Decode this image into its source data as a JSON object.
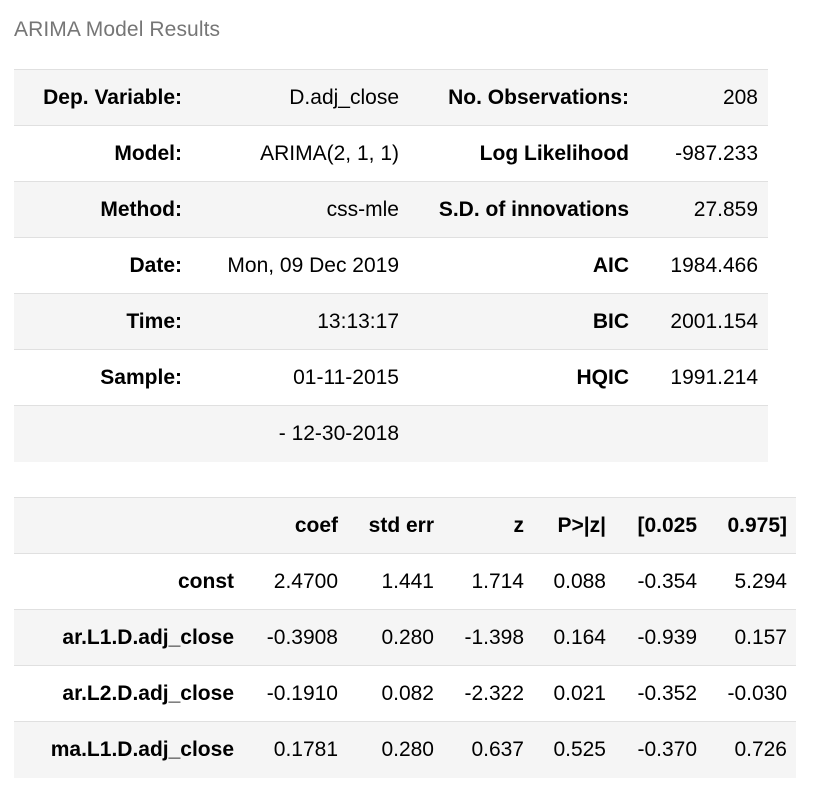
{
  "caption": "ARIMA Model Results",
  "summary": {
    "rows": [
      {
        "l_label": "Dep. Variable:",
        "l_value": "D.adj_close",
        "r_label": "No. Observations:",
        "r_value": "208"
      },
      {
        "l_label": "Model:",
        "l_value": "ARIMA(2, 1, 1)",
        "r_label": "Log Likelihood",
        "r_value": "-987.233"
      },
      {
        "l_label": "Method:",
        "l_value": "css-mle",
        "r_label": "S.D. of innovations",
        "r_value": "27.859"
      },
      {
        "l_label": "Date:",
        "l_value": "Mon, 09 Dec 2019",
        "r_label": "AIC",
        "r_value": "1984.466"
      },
      {
        "l_label": "Time:",
        "l_value": "13:13:17",
        "r_label": "BIC",
        "r_value": "2001.154"
      },
      {
        "l_label": "Sample:",
        "l_value": "01-11-2015",
        "r_label": "HQIC",
        "r_value": "1991.214"
      },
      {
        "l_label": "",
        "l_value": "- 12-30-2018",
        "r_label": "",
        "r_value": ""
      }
    ]
  },
  "coefficients": {
    "headers": [
      "",
      "coef",
      "std err",
      "z",
      "P>|z|",
      "[0.025",
      "0.975]"
    ],
    "rows": [
      {
        "name": "const",
        "coef": "2.4700",
        "std_err": "1.441",
        "z": "1.714",
        "p": "0.088",
        "low": "-0.354",
        "high": "5.294"
      },
      {
        "name": "ar.L1.D.adj_close",
        "coef": "-0.3908",
        "std_err": "0.280",
        "z": "-1.398",
        "p": "0.164",
        "low": "-0.939",
        "high": "0.157"
      },
      {
        "name": "ar.L2.D.adj_close",
        "coef": "-0.1910",
        "std_err": "0.082",
        "z": "-2.322",
        "p": "0.021",
        "low": "-0.352",
        "high": "-0.030"
      },
      {
        "name": "ma.L1.D.adj_close",
        "coef": "0.1781",
        "std_err": "0.280",
        "z": "0.637",
        "p": "0.525",
        "low": "-0.370",
        "high": "0.726"
      }
    ]
  }
}
